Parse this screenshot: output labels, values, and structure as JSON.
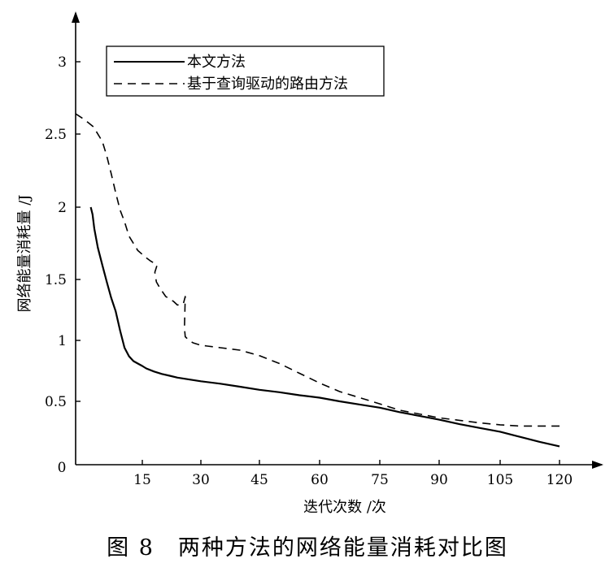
{
  "chart_data": {
    "type": "line",
    "caption": "图 8　两种方法的网络能量消耗对比图",
    "xlabel": "迭代次数 /次",
    "ylabel": "网络能量消耗量 /J",
    "xlim": [
      0,
      123
    ],
    "ylim": [
      0,
      3.4
    ],
    "x_ticks": [
      {
        "value": 15,
        "label": "15"
      },
      {
        "value": 30,
        "label": "30"
      },
      {
        "value": 45,
        "label": "45"
      },
      {
        "value": 60,
        "label": "60"
      },
      {
        "value": 75,
        "label": "75"
      },
      {
        "value": 90,
        "label": "90"
      },
      {
        "value": 105,
        "label": "105"
      },
      {
        "value": 120,
        "label": "120"
      }
    ],
    "y_ticks": [
      {
        "value": 0,
        "label": "0"
      },
      {
        "value": 0.5,
        "label": "0.5"
      },
      {
        "value": 1,
        "label": "1"
      },
      {
        "value": 1.5,
        "label": "1.5"
      },
      {
        "value": 2,
        "label": "2"
      },
      {
        "value": 2.5,
        "label": "2.5"
      },
      {
        "value": 3,
        "label": "3"
      }
    ],
    "grid": false,
    "legend_position": "top-left",
    "series": [
      {
        "name": "本文方法",
        "style": "solid",
        "x": [
          3.4,
          3.8,
          4.2,
          5,
          6,
          7,
          8,
          9,
          10,
          11,
          12,
          13,
          14,
          15,
          16,
          18,
          20,
          22,
          24,
          26,
          30,
          35,
          40,
          45,
          50,
          55,
          60,
          65,
          70,
          75,
          80,
          85,
          90,
          95,
          100,
          105,
          110,
          115,
          120
        ],
        "y": [
          2.0,
          1.95,
          1.85,
          1.72,
          1.6,
          1.48,
          1.35,
          1.24,
          1.08,
          0.94,
          0.87,
          0.83,
          0.81,
          0.79,
          0.77,
          0.745,
          0.725,
          0.71,
          0.695,
          0.685,
          0.665,
          0.645,
          0.62,
          0.595,
          0.575,
          0.55,
          0.53,
          0.5,
          0.475,
          0.45,
          0.415,
          0.385,
          0.355,
          0.32,
          0.29,
          0.26,
          0.22,
          0.18,
          0.145
        ]
      },
      {
        "name": "基于查询驱动的路由方法",
        "style": "dashed",
        "x": [
          0,
          2,
          4,
          6,
          7,
          8,
          9,
          10,
          11,
          12,
          14,
          16,
          17,
          18.8,
          18.2,
          18.6,
          19.5,
          21,
          23,
          24,
          25.5,
          26,
          25.8,
          26,
          27,
          28,
          30,
          35,
          40,
          45,
          50,
          55,
          60,
          65,
          70,
          75,
          80,
          85,
          90,
          95,
          100,
          105,
          110,
          120
        ],
        "y": [
          2.64,
          2.6,
          2.55,
          2.45,
          2.35,
          2.23,
          2.1,
          1.98,
          1.9,
          1.8,
          1.7,
          1.65,
          1.63,
          1.6,
          1.55,
          1.48,
          1.43,
          1.36,
          1.32,
          1.29,
          1.3,
          1.36,
          1.1,
          1.03,
          1.0,
          0.98,
          0.96,
          0.94,
          0.92,
          0.875,
          0.81,
          0.73,
          0.65,
          0.58,
          0.53,
          0.48,
          0.43,
          0.4,
          0.37,
          0.35,
          0.33,
          0.315,
          0.305,
          0.305
        ]
      }
    ]
  }
}
